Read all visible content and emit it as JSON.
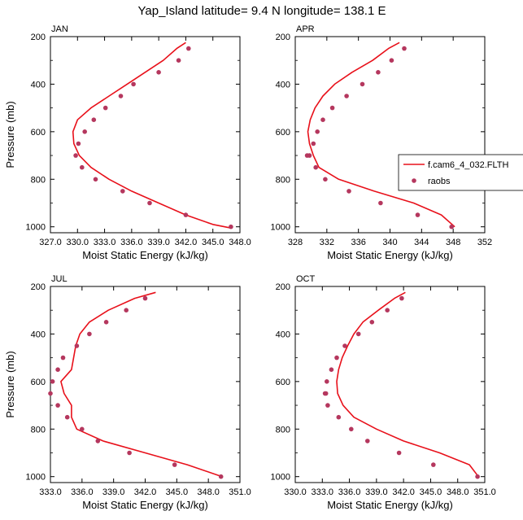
{
  "title": "Yap_Island  latitude= 9.4 N longitude= 138.1 E",
  "colors": {
    "model": "#e8101a",
    "obs": "#b5375e"
  },
  "legend": {
    "position": "right-of-APR-panel",
    "model_label": "f.cam6_4_032.FLTH",
    "obs_label": "raobs"
  },
  "chart_data": [
    {
      "type": "line",
      "panel": "JAN",
      "xlabel": "Moist Static Energy (kJ/kg)",
      "ylabel": "Pressure (mb)",
      "xlim": [
        327,
        348
      ],
      "ylim": [
        1025,
        200
      ],
      "y_inverted": true,
      "xticks": [
        "327.0",
        "330.0",
        "333.0",
        "336.0",
        "339.0",
        "342.0",
        "345.0",
        "348.0"
      ],
      "yticks": [
        "200",
        "400",
        "600",
        "800",
        "1000"
      ],
      "series": [
        {
          "name": "f.cam6_4_032.FLTH",
          "kind": "line",
          "x": [
            342.0,
            341.0,
            339.5,
            337.5,
            335.5,
            333.5,
            331.5,
            330.0,
            329.5,
            329.6,
            330.2,
            331.5,
            333.5,
            336.0,
            339.0,
            342.0,
            345.0,
            347.0
          ],
          "y": [
            225,
            250,
            300,
            350,
            400,
            450,
            500,
            550,
            600,
            650,
            700,
            750,
            800,
            850,
            900,
            950,
            990,
            1005
          ]
        },
        {
          "name": "raobs",
          "kind": "scatter",
          "x": [
            342.3,
            341.2,
            339.0,
            336.2,
            334.8,
            333.1,
            331.8,
            330.8,
            330.1,
            329.8,
            330.5,
            332.0,
            335.0,
            338.0,
            342.0,
            347.0
          ],
          "y": [
            250,
            300,
            350,
            400,
            450,
            500,
            550,
            600,
            650,
            700,
            750,
            800,
            850,
            900,
            950,
            1000
          ]
        }
      ]
    },
    {
      "type": "line",
      "panel": "APR",
      "xlabel": "Moist Static Energy (kJ/kg)",
      "ylabel": "",
      "xlim": [
        328,
        352
      ],
      "ylim": [
        1025,
        200
      ],
      "y_inverted": true,
      "xticks": [
        "328",
        "332",
        "336",
        "340",
        "344",
        "348",
        "352"
      ],
      "yticks": [
        "200",
        "400",
        "600",
        "800",
        "1000"
      ],
      "series": [
        {
          "name": "f.cam6_4_032.FLTH",
          "kind": "line",
          "x": [
            341.2,
            339.8,
            337.8,
            335.2,
            333.0,
            331.5,
            330.5,
            329.9,
            329.6,
            329.8,
            330.3,
            331.0,
            333.5,
            338.0,
            343.0,
            346.5,
            348.2
          ],
          "y": [
            225,
            250,
            300,
            350,
            400,
            450,
            500,
            550,
            600,
            650,
            700,
            750,
            800,
            850,
            900,
            950,
            1000
          ]
        },
        {
          "name": "raobs",
          "kind": "scatter",
          "x": [
            341.8,
            340.2,
            338.5,
            336.5,
            334.5,
            332.7,
            331.5,
            330.8,
            330.3,
            329.8,
            329.5,
            330.6,
            331.8,
            334.8,
            338.8,
            343.5,
            347.8
          ],
          "y": [
            250,
            300,
            350,
            400,
            450,
            500,
            550,
            600,
            650,
            700,
            700,
            750,
            800,
            850,
            900,
            950,
            1000
          ]
        }
      ]
    },
    {
      "type": "line",
      "panel": "JUL",
      "xlabel": "Moist Static Energy (kJ/kg)",
      "ylabel": "Pressure (mb)",
      "xlim": [
        333,
        351
      ],
      "ylim": [
        1025,
        200
      ],
      "y_inverted": true,
      "xticks": [
        "333.0",
        "336.0",
        "339.0",
        "342.0",
        "345.0",
        "348.0",
        "351.0"
      ],
      "yticks": [
        "200",
        "400",
        "600",
        "800",
        "1000"
      ],
      "series": [
        {
          "name": "f.cam6_4_032.FLTH",
          "kind": "line",
          "x": [
            343.0,
            341.0,
            338.5,
            336.7,
            335.8,
            335.4,
            335.0,
            334.0,
            334.3,
            335.0,
            335.0,
            335.5,
            338.0,
            342.0,
            346.0,
            349.3
          ],
          "y": [
            225,
            250,
            300,
            350,
            400,
            450,
            550,
            600,
            650,
            700,
            750,
            800,
            850,
            900,
            950,
            1000
          ]
        },
        {
          "name": "raobs",
          "kind": "scatter",
          "x": [
            342.0,
            340.2,
            338.3,
            336.7,
            335.5,
            334.2,
            333.7,
            333.2,
            333.0,
            333.7,
            334.6,
            336.0,
            337.5,
            340.5,
            344.8,
            349.2
          ],
          "y": [
            250,
            300,
            350,
            400,
            450,
            500,
            550,
            600,
            650,
            700,
            750,
            800,
            850,
            900,
            950,
            1000
          ]
        }
      ]
    },
    {
      "type": "line",
      "panel": "OCT",
      "xlabel": "Moist Static Energy (kJ/kg)",
      "ylabel": "",
      "xlim": [
        330,
        351
      ],
      "ylim": [
        1025,
        200
      ],
      "y_inverted": true,
      "xticks": [
        "330.0",
        "333.0",
        "336.0",
        "339.0",
        "342.0",
        "345.0",
        "348.0",
        "351.0"
      ],
      "yticks": [
        "200",
        "400",
        "600",
        "800",
        "1000"
      ],
      "series": [
        {
          "name": "f.cam6_4_032.FLTH",
          "kind": "line",
          "x": [
            342.2,
            341.0,
            339.2,
            337.5,
            336.5,
            335.8,
            335.2,
            334.8,
            334.6,
            334.7,
            335.3,
            336.5,
            339.0,
            342.0,
            346.0,
            349.3,
            350.3
          ],
          "y": [
            225,
            250,
            300,
            350,
            400,
            450,
            500,
            550,
            600,
            650,
            700,
            750,
            800,
            850,
            900,
            950,
            1000
          ]
        },
        {
          "name": "raobs",
          "kind": "scatter",
          "x": [
            341.8,
            340.2,
            338.5,
            337.0,
            335.5,
            334.6,
            334.0,
            333.5,
            333.3,
            333.4,
            333.6,
            334.8,
            336.2,
            338.0,
            341.5,
            345.3,
            350.2
          ],
          "y": [
            250,
            300,
            350,
            400,
            450,
            500,
            550,
            600,
            650,
            650,
            700,
            750,
            800,
            850,
            900,
            950,
            1000
          ]
        }
      ]
    }
  ]
}
